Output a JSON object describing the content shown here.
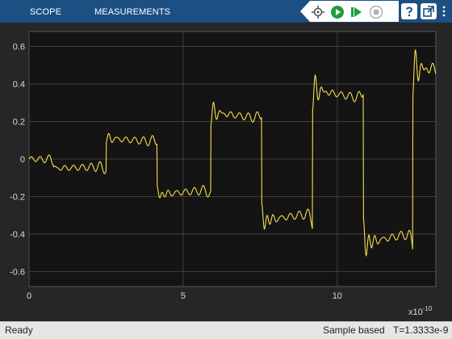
{
  "toolstrip": {
    "tabs": [
      {
        "label": "SCOPE"
      },
      {
        "label": "MEASUREMENTS"
      }
    ],
    "icons": [
      "signal-cursor-icon",
      "run-icon",
      "step-forward-icon",
      "stop-icon",
      "help-icon",
      "undock-icon",
      "more-icon"
    ]
  },
  "status": {
    "left": "Ready",
    "mode": "Sample based",
    "time": "T=1.3333e-9"
  },
  "colors": {
    "toolstrip": "#1c4f82",
    "plot_background": "#141414",
    "trace": "#f5df4d",
    "grid": "#4a4a4a",
    "run_green": "#1e9e3c"
  },
  "chart_data": {
    "type": "line",
    "title": "",
    "xlabel": "",
    "ylabel": "",
    "x_exponent_label": "x10",
    "x_exponent_power": "-10",
    "xlim": [
      0,
      13.2
    ],
    "ylim": [
      -0.68,
      0.68
    ],
    "xticks": [
      0,
      5,
      10
    ],
    "yticks": [
      0.6,
      0.4,
      0.2,
      0,
      -0.2,
      -0.4,
      -0.6
    ],
    "ytick_labels": [
      "0.6",
      "0.4",
      "0.2",
      "0",
      "-0.2",
      "-0.4",
      "-0.6"
    ],
    "xtick_labels": [
      "0",
      "5",
      "10"
    ],
    "grid": true,
    "series": [
      {
        "levels": [
          0,
          -0.05,
          0.11,
          -0.19,
          0.25,
          -0.33,
          0.37,
          -0.45,
          0.48
        ],
        "steps": [
          0.8,
          2.5,
          4.15,
          5.9,
          7.55,
          9.2,
          10.85,
          12.45
        ],
        "ripple_amplitude": 0.035,
        "line_color": "#f5df4d"
      }
    ]
  }
}
